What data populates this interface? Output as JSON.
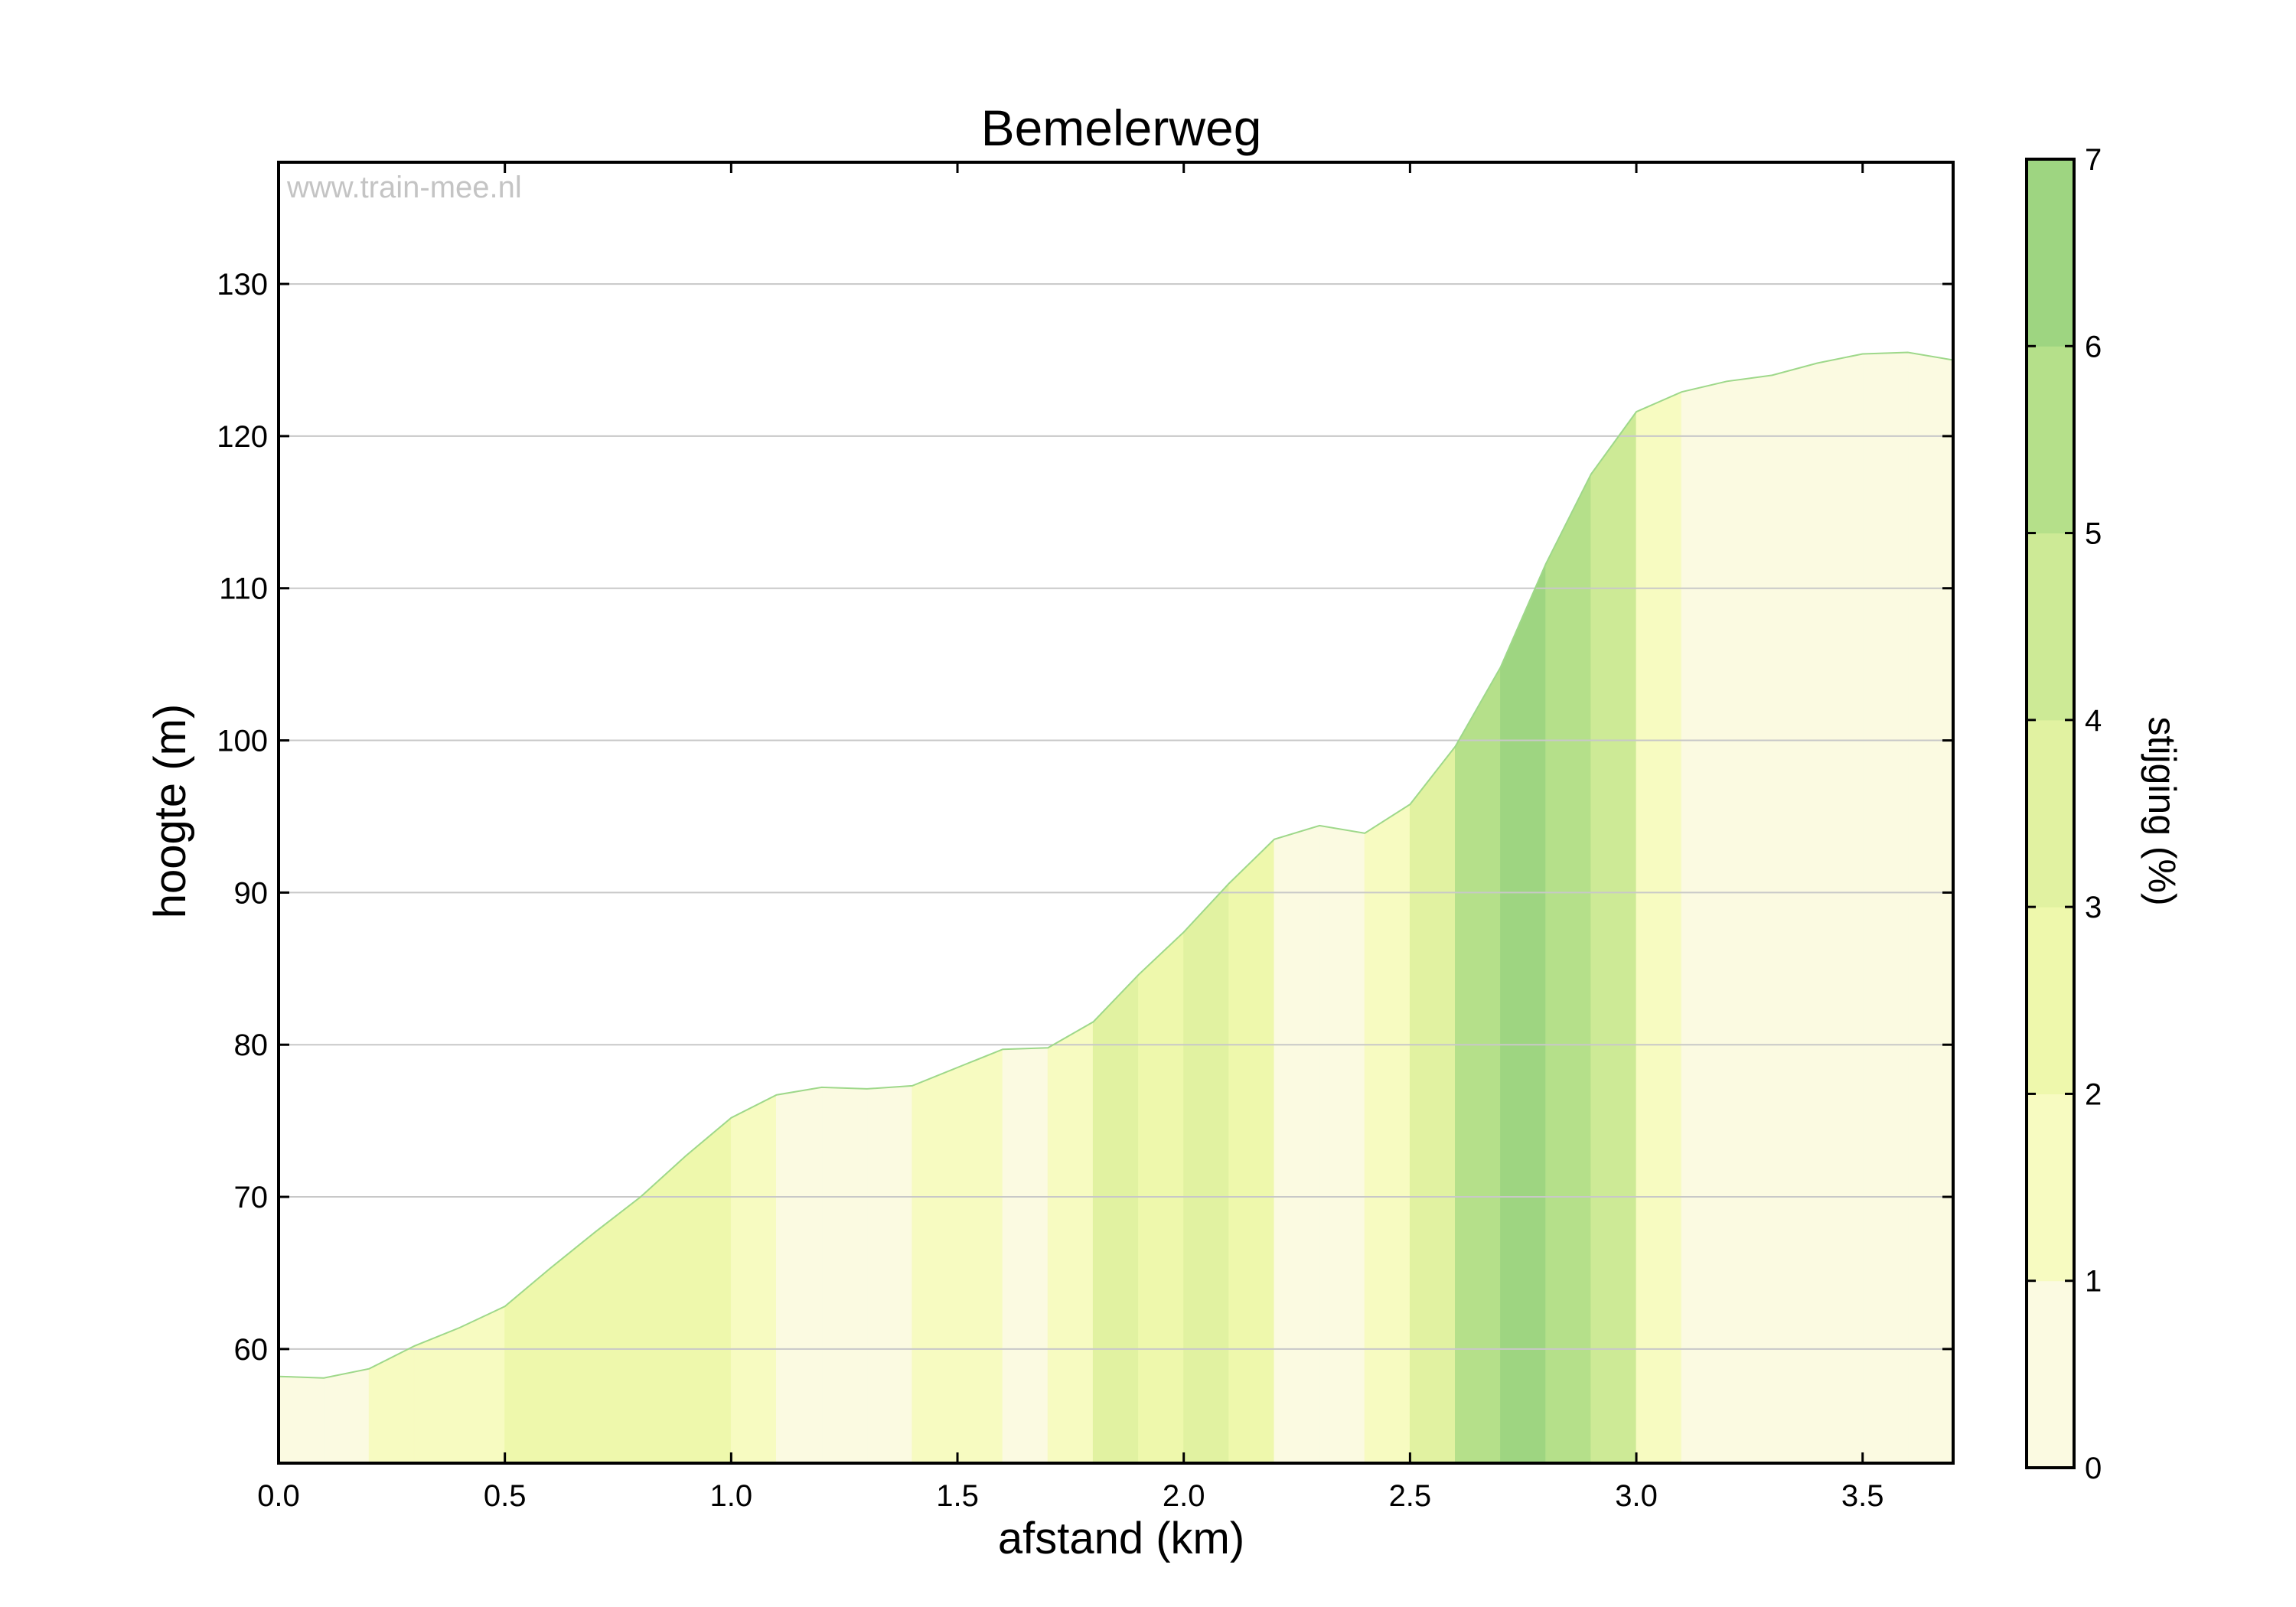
{
  "chart_data": {
    "type": "area",
    "title": "Bemelerweg",
    "xlabel": "afstand (km)",
    "ylabel": "hoogte (m)",
    "watermark": "www.train-mee.nl",
    "xlim": [
      0,
      3.7
    ],
    "ylim": [
      52.5,
      138
    ],
    "x_ticks": [
      0.0,
      0.5,
      1.0,
      1.5,
      2.0,
      2.5,
      3.0,
      3.5
    ],
    "x_tick_labels": [
      "0.0",
      "0.5",
      "1.0",
      "1.5",
      "2.0",
      "2.5",
      "3.0",
      "3.5"
    ],
    "y_ticks": [
      60,
      70,
      80,
      90,
      100,
      110,
      120,
      130
    ],
    "y_tick_labels": [
      "60",
      "70",
      "80",
      "90",
      "100",
      "110",
      "120",
      "130"
    ],
    "grid": "horizontal",
    "line_color": "#9ed88a",
    "profile": [
      {
        "x": 0.0,
        "y": 58.2
      },
      {
        "x": 0.1,
        "y": 58.1
      },
      {
        "x": 0.2,
        "y": 58.7
      },
      {
        "x": 0.3,
        "y": 60.2
      },
      {
        "x": 0.4,
        "y": 61.4
      },
      {
        "x": 0.5,
        "y": 62.8
      },
      {
        "x": 0.6,
        "y": 65.3
      },
      {
        "x": 0.7,
        "y": 67.7
      },
      {
        "x": 0.8,
        "y": 70.0
      },
      {
        "x": 0.9,
        "y": 72.7
      },
      {
        "x": 1.0,
        "y": 75.2
      },
      {
        "x": 1.1,
        "y": 76.7
      },
      {
        "x": 1.2,
        "y": 77.2
      },
      {
        "x": 1.3,
        "y": 77.1
      },
      {
        "x": 1.4,
        "y": 77.3
      },
      {
        "x": 1.5,
        "y": 78.5
      },
      {
        "x": 1.6,
        "y": 79.7
      },
      {
        "x": 1.7,
        "y": 79.8
      },
      {
        "x": 1.8,
        "y": 81.5
      },
      {
        "x": 1.9,
        "y": 84.6
      },
      {
        "x": 2.0,
        "y": 87.4
      },
      {
        "x": 2.1,
        "y": 90.6
      },
      {
        "x": 2.2,
        "y": 93.5
      },
      {
        "x": 2.3,
        "y": 94.4
      },
      {
        "x": 2.4,
        "y": 93.9
      },
      {
        "x": 2.5,
        "y": 95.8
      },
      {
        "x": 2.6,
        "y": 99.6
      },
      {
        "x": 2.7,
        "y": 104.8
      },
      {
        "x": 2.8,
        "y": 111.6
      },
      {
        "x": 2.9,
        "y": 117.5
      },
      {
        "x": 3.0,
        "y": 121.6
      },
      {
        "x": 3.1,
        "y": 122.9
      },
      {
        "x": 3.2,
        "y": 123.6
      },
      {
        "x": 3.3,
        "y": 124.0
      },
      {
        "x": 3.4,
        "y": 124.8
      },
      {
        "x": 3.5,
        "y": 125.4
      },
      {
        "x": 3.6,
        "y": 125.5
      },
      {
        "x": 3.7,
        "y": 125.0
      }
    ],
    "colorbar": {
      "label": "stijging (%)",
      "range": [
        0,
        7
      ],
      "ticks": [
        0,
        1,
        2,
        3,
        4,
        5,
        6,
        7
      ],
      "tick_labels": [
        "0",
        "1",
        "2",
        "3",
        "4",
        "5",
        "6",
        "7"
      ],
      "colors": [
        "#fbfae1",
        "#f7fbc1",
        "#eef8ac",
        "#e1f2a1",
        "#cdea96",
        "#b5e08a",
        "#9ed581"
      ]
    }
  }
}
